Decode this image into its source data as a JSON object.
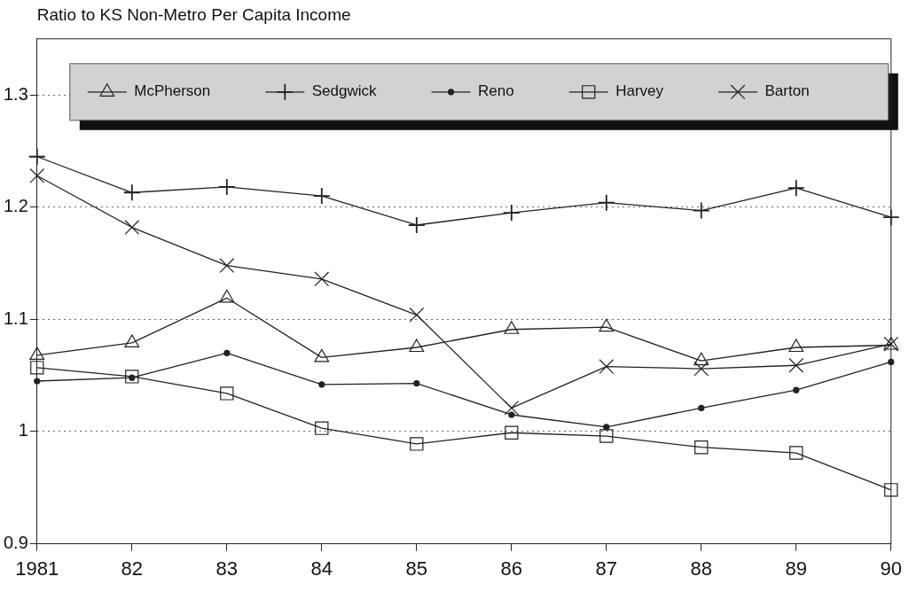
{
  "chart_data": {
    "type": "line",
    "title": "Ratio to KS Non-Metro Per Capita Income",
    "categories": [
      "1981",
      "82",
      "83",
      "84",
      "85",
      "86",
      "87",
      "88",
      "89",
      "90"
    ],
    "series": [
      {
        "name": "McPherson",
        "color": "#222222",
        "marker": "triangle",
        "values": [
          1.068,
          1.079,
          1.119,
          1.066,
          1.075,
          1.091,
          1.093,
          1.063,
          1.075,
          1.077
        ]
      },
      {
        "name": "Sedgwick",
        "color": "#222222",
        "marker": "cross",
        "values": [
          1.245,
          1.213,
          1.218,
          1.21,
          1.184,
          1.195,
          1.204,
          1.197,
          1.217,
          1.191
        ]
      },
      {
        "name": "Reno",
        "color": "#222222",
        "marker": "circle",
        "values": [
          1.045,
          1.048,
          1.07,
          1.042,
          1.043,
          1.015,
          1.004,
          1.021,
          1.037,
          1.062
        ]
      },
      {
        "name": "Harvey",
        "color": "#222222",
        "marker": "square",
        "values": [
          1.057,
          1.049,
          1.034,
          1.003,
          0.989,
          0.999,
          0.996,
          0.986,
          0.981,
          0.948
        ]
      },
      {
        "name": "Barton",
        "color": "#222222",
        "marker": "cross",
        "values": [
          1.228,
          1.182,
          1.148,
          1.136,
          1.104,
          1.021,
          1.058,
          1.056,
          1.059,
          1.078
        ]
      }
    ],
    "ylim": [
      0.9,
      1.35
    ],
    "yticks": [
      0.9,
      1,
      1.1,
      1.2,
      1.3
    ],
    "grid": "y",
    "legend": "top"
  }
}
